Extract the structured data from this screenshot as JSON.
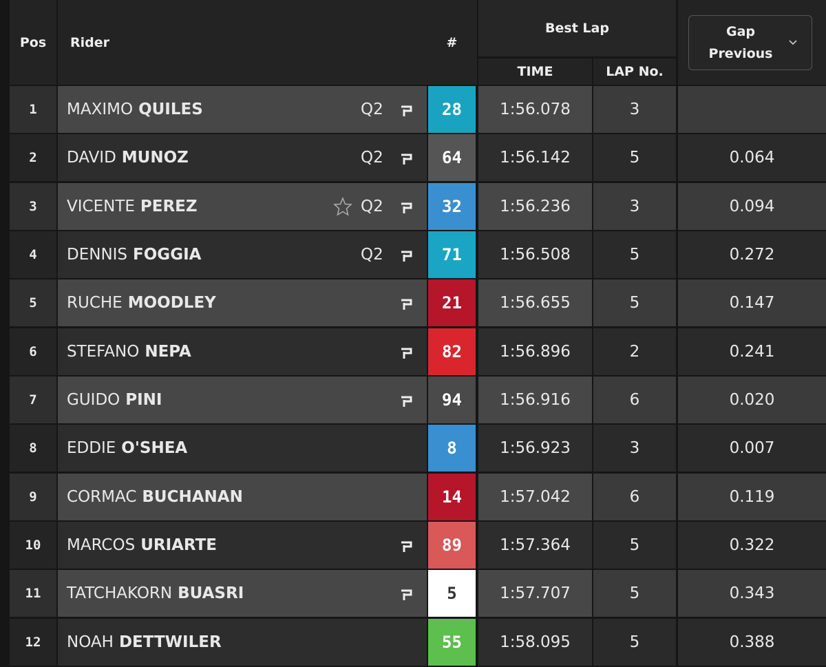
{
  "header": {
    "pos": "Pos",
    "rider": "Rider",
    "number": "#",
    "best_lap": "Best Lap",
    "time": "TIME",
    "lap_no": "LAP No.",
    "gap": "Gap Previous"
  },
  "rows": [
    {
      "pos": "1",
      "first_name": "MAXIMO",
      "last_name": "QUILES",
      "tag": "Q2",
      "icon": true,
      "number": "28",
      "color": "#1aa3c0",
      "time": "1:56.078",
      "lap": "3"
    },
    {
      "pos": "2",
      "first_name": "DAVID",
      "last_name": "MUNOZ",
      "tag": "Q2",
      "icon": true,
      "number": "64",
      "color": "#555555",
      "time": "1:56.142",
      "lap": "5",
      "gap": "0.064"
    },
    {
      "pos": "3",
      "first_name": "VICENTE",
      "last_name": "PEREZ",
      "tag": "Q2",
      "star": true,
      "icon": true,
      "number": "32",
      "color": "#3a8fd0",
      "time": "1:56.236",
      "lap": "3",
      "gap": "0.094"
    },
    {
      "pos": "4",
      "first_name": "DENNIS",
      "last_name": "FOGGIA",
      "tag": "Q2",
      "icon": true,
      "number": "71",
      "color": "#1ba5c4",
      "time": "1:56.508",
      "lap": "5",
      "gap": "0.272"
    },
    {
      "pos": "5",
      "first_name": "RUCHE",
      "last_name": "MOODLEY",
      "icon": true,
      "number": "21",
      "color": "#b5162a",
      "time": "1:56.655",
      "lap": "5",
      "gap": "0.147"
    },
    {
      "pos": "6",
      "first_name": "STEFANO",
      "last_name": "NEPA",
      "icon": true,
      "number": "82",
      "color": "#d9262e",
      "time": "1:56.896",
      "lap": "2",
      "gap": "0.241"
    },
    {
      "pos": "7",
      "first_name": "GUIDO",
      "last_name": "PINI",
      "icon": true,
      "number": "94",
      "color": "#4a4a4a",
      "time": "1:56.916",
      "lap": "6",
      "gap": "0.020"
    },
    {
      "pos": "8",
      "first_name": "EDDIE",
      "last_name": "O'SHEA",
      "number": "8",
      "color": "#3a8fd0",
      "time": "1:56.923",
      "lap": "3",
      "gap": "0.007"
    },
    {
      "pos": "9",
      "first_name": "CORMAC",
      "last_name": "BUCHANAN",
      "number": "14",
      "color": "#b5162a",
      "time": "1:57.042",
      "lap": "6",
      "gap": "0.119"
    },
    {
      "pos": "10",
      "first_name": "MARCOS",
      "last_name": "URIARTE",
      "icon": true,
      "number": "89",
      "color": "#d95858",
      "time": "1:57.364",
      "lap": "5",
      "gap": "0.322"
    },
    {
      "pos": "11",
      "first_name": "TATCHAKORN",
      "last_name": "BUASRI",
      "icon": true,
      "number": "5",
      "color": "#ffffff",
      "time": "1:57.707",
      "lap": "5",
      "gap": "0.343"
    },
    {
      "pos": "12",
      "first_name": "NOAH",
      "last_name": "DETTWILER",
      "number": "55",
      "color": "#5cbf4e",
      "time": "1:58.095",
      "lap": "5",
      "gap": "0.388"
    }
  ]
}
